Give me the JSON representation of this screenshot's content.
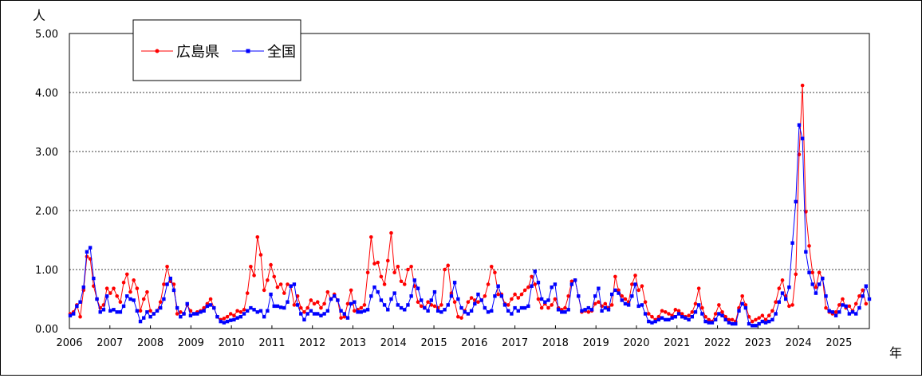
{
  "chart_data": {
    "type": "line",
    "title": "",
    "xlabel": "年",
    "ylabel": "人",
    "ylim": [
      0,
      5
    ],
    "y_ticks": [
      "0.00",
      "1.00",
      "2.00",
      "3.00",
      "4.00",
      "5.00"
    ],
    "x_ticks": [
      "2006",
      "2007",
      "2008",
      "2009",
      "2010",
      "2011",
      "2012",
      "2013",
      "2014",
      "2015",
      "2016",
      "2017",
      "2018",
      "2019",
      "2020",
      "2021",
      "2022",
      "2023",
      "2024",
      "2025"
    ],
    "grid": "horizontal dashed",
    "legend_position": "top-left",
    "x_start_year": 2006,
    "x_start_week": 1,
    "series": [
      {
        "name": "広島県",
        "color": "#ff0000",
        "marker": "circle",
        "values": [
          0.25,
          0.28,
          0.4,
          0.2,
          0.65,
          1.22,
          1.18,
          0.72,
          0.5,
          0.35,
          0.4,
          0.68,
          0.6,
          0.68,
          0.55,
          0.45,
          0.78,
          0.92,
          0.62,
          0.82,
          0.68,
          0.3,
          0.5,
          0.62,
          0.3,
          0.25,
          0.3,
          0.45,
          0.75,
          1.05,
          0.8,
          0.75,
          0.25,
          0.28,
          0.25,
          0.4,
          0.3,
          0.25,
          0.28,
          0.3,
          0.35,
          0.42,
          0.5,
          0.35,
          0.2,
          0.15,
          0.17,
          0.2,
          0.25,
          0.22,
          0.3,
          0.28,
          0.32,
          0.6,
          1.05,
          0.9,
          1.55,
          1.25,
          0.65,
          0.82,
          1.08,
          0.88,
          0.7,
          0.75,
          0.6,
          0.75,
          0.72,
          0.4,
          0.55,
          0.35,
          0.28,
          0.35,
          0.48,
          0.42,
          0.45,
          0.35,
          0.42,
          0.62,
          0.5,
          0.58,
          0.48,
          0.18,
          0.2,
          0.42,
          0.65,
          0.3,
          0.32,
          0.35,
          0.4,
          0.95,
          1.55,
          1.1,
          1.12,
          0.88,
          0.75,
          1.15,
          1.62,
          0.95,
          1.05,
          0.8,
          0.75,
          1.0,
          1.05,
          0.72,
          0.45,
          0.38,
          0.35,
          0.45,
          0.4,
          0.38,
          0.35,
          0.4,
          1.0,
          1.07,
          0.6,
          0.45,
          0.2,
          0.18,
          0.3,
          0.45,
          0.52,
          0.48,
          0.45,
          0.48,
          0.55,
          0.75,
          1.05,
          0.95,
          0.58,
          0.58,
          0.42,
          0.4,
          0.5,
          0.58,
          0.52,
          0.58,
          0.65,
          0.7,
          0.88,
          0.75,
          0.5,
          0.35,
          0.42,
          0.35,
          0.4,
          0.5,
          0.35,
          0.32,
          0.35,
          0.55,
          0.8,
          0.82,
          0.55,
          0.28,
          0.3,
          0.28,
          0.3,
          0.42,
          0.45,
          0.38,
          0.42,
          0.35,
          0.4,
          0.88,
          0.65,
          0.55,
          0.5,
          0.45,
          0.75,
          0.9,
          0.65,
          0.72,
          0.45,
          0.25,
          0.2,
          0.15,
          0.2,
          0.3,
          0.28,
          0.25,
          0.22,
          0.32,
          0.3,
          0.25,
          0.2,
          0.22,
          0.28,
          0.42,
          0.68,
          0.35,
          0.2,
          0.15,
          0.12,
          0.25,
          0.4,
          0.28,
          0.2,
          0.15,
          0.15,
          0.12,
          0.35,
          0.55,
          0.4,
          0.2,
          0.12,
          0.15,
          0.18,
          0.22,
          0.15,
          0.22,
          0.3,
          0.45,
          0.68,
          0.82,
          0.55,
          0.38,
          0.4,
          0.92,
          2.95,
          4.12,
          1.98,
          1.4,
          0.95,
          0.7,
          0.95,
          0.85,
          0.35,
          0.28,
          0.25,
          0.28,
          0.4,
          0.5,
          0.35,
          0.38,
          0.3,
          0.42,
          0.55,
          0.65,
          0.42
        ]
      },
      {
        "name": "全国",
        "color": "#0000ff",
        "marker": "square",
        "values": [
          0.22,
          0.25,
          0.38,
          0.45,
          0.7,
          1.3,
          1.37,
          0.85,
          0.5,
          0.28,
          0.32,
          0.55,
          0.3,
          0.32,
          0.28,
          0.28,
          0.38,
          0.55,
          0.5,
          0.48,
          0.3,
          0.12,
          0.18,
          0.28,
          0.2,
          0.25,
          0.3,
          0.35,
          0.5,
          0.75,
          0.85,
          0.65,
          0.35,
          0.2,
          0.25,
          0.42,
          0.22,
          0.25,
          0.25,
          0.28,
          0.3,
          0.38,
          0.4,
          0.35,
          0.2,
          0.12,
          0.1,
          0.12,
          0.14,
          0.15,
          0.18,
          0.2,
          0.25,
          0.3,
          0.35,
          0.32,
          0.28,
          0.3,
          0.2,
          0.3,
          0.58,
          0.38,
          0.38,
          0.36,
          0.35,
          0.45,
          0.72,
          0.75,
          0.4,
          0.25,
          0.15,
          0.25,
          0.3,
          0.25,
          0.25,
          0.22,
          0.25,
          0.3,
          0.5,
          0.55,
          0.48,
          0.3,
          0.25,
          0.18,
          0.42,
          0.45,
          0.28,
          0.28,
          0.3,
          0.32,
          0.55,
          0.7,
          0.62,
          0.48,
          0.4,
          0.32,
          0.5,
          0.6,
          0.4,
          0.35,
          0.32,
          0.4,
          0.55,
          0.82,
          0.68,
          0.48,
          0.35,
          0.3,
          0.48,
          0.62,
          0.3,
          0.28,
          0.32,
          0.4,
          0.55,
          0.78,
          0.5,
          0.35,
          0.28,
          0.25,
          0.3,
          0.42,
          0.58,
          0.48,
          0.35,
          0.28,
          0.3,
          0.55,
          0.72,
          0.55,
          0.4,
          0.3,
          0.25,
          0.35,
          0.3,
          0.35,
          0.35,
          0.38,
          0.72,
          0.97,
          0.78,
          0.5,
          0.45,
          0.48,
          0.7,
          0.75,
          0.32,
          0.28,
          0.28,
          0.32,
          0.75,
          0.82,
          0.55,
          0.3,
          0.32,
          0.35,
          0.32,
          0.55,
          0.68,
          0.3,
          0.35,
          0.32,
          0.58,
          0.65,
          0.6,
          0.48,
          0.42,
          0.4,
          0.55,
          0.75,
          0.38,
          0.4,
          0.25,
          0.12,
          0.1,
          0.12,
          0.15,
          0.18,
          0.15,
          0.15,
          0.18,
          0.2,
          0.25,
          0.2,
          0.18,
          0.15,
          0.2,
          0.28,
          0.4,
          0.25,
          0.12,
          0.1,
          0.1,
          0.15,
          0.25,
          0.22,
          0.15,
          0.1,
          0.08,
          0.08,
          0.3,
          0.42,
          0.35,
          0.08,
          0.05,
          0.05,
          0.08,
          0.12,
          0.1,
          0.12,
          0.15,
          0.25,
          0.45,
          0.6,
          0.5,
          0.7,
          1.45,
          2.15,
          3.45,
          3.22,
          1.3,
          0.95,
          0.75,
          0.6,
          0.75,
          0.85,
          0.55,
          0.3,
          0.28,
          0.22,
          0.28,
          0.4,
          0.38,
          0.25,
          0.28,
          0.25,
          0.35,
          0.55,
          0.72,
          0.5
        ]
      }
    ]
  }
}
